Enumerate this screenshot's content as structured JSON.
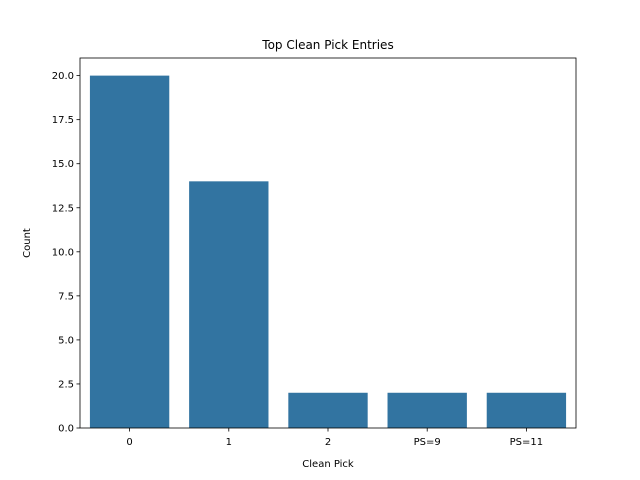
{
  "chart_data": {
    "type": "bar",
    "title": "Top Clean Pick Entries",
    "xlabel": "Clean Pick",
    "ylabel": "Count",
    "categories": [
      "0",
      "1",
      "2",
      "PS=9",
      "PS=11"
    ],
    "values": [
      20,
      14,
      2,
      2,
      2
    ],
    "ylim": [
      0,
      21
    ],
    "yticks": [
      "0.0",
      "2.5",
      "5.0",
      "7.5",
      "10.0",
      "12.5",
      "15.0",
      "17.5",
      "20.0"
    ],
    "bar_color": "#3274a1",
    "grid": false,
    "legend": "none"
  }
}
